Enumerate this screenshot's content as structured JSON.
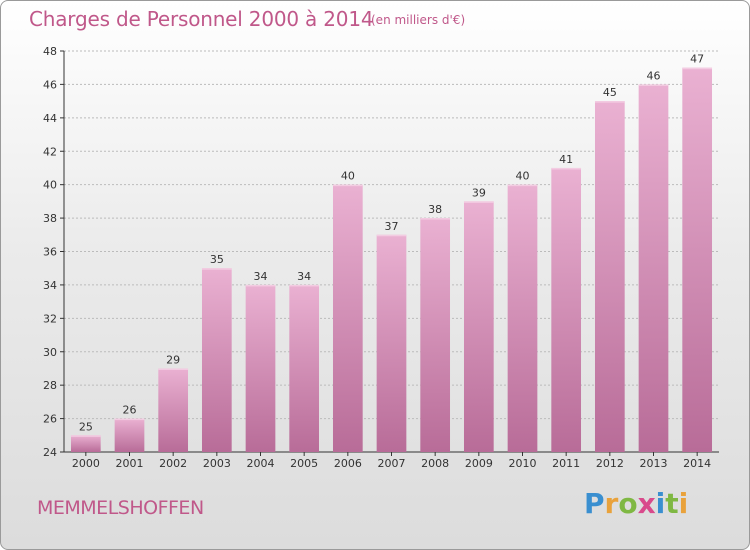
{
  "header": {
    "title": "Charges de Personnel 2000 à 2014",
    "subtitle": "(en milliers d'€)"
  },
  "footer": {
    "commune": "MEMMELSHOFFEN",
    "logo_text": "Proxiti"
  },
  "colors": {
    "bar": "#d98ab5",
    "bar_light": "#eab1d2",
    "bar_dark": "#b86c98",
    "title": "#c0588a",
    "axis": "#333333",
    "grid": "#bbbbbb"
  },
  "chart_data": {
    "type": "bar",
    "categories": [
      "2000",
      "2001",
      "2002",
      "2003",
      "2004",
      "2005",
      "2006",
      "2007",
      "2008",
      "2009",
      "2010",
      "2011",
      "2012",
      "2013",
      "2014"
    ],
    "values": [
      25,
      26,
      29,
      35,
      34,
      34,
      40,
      37,
      38,
      39,
      40,
      41,
      45,
      46,
      47
    ],
    "title": "Charges de Personnel 2000 à 2014",
    "subtitle": "(en milliers d'€)",
    "ylim": [
      24,
      48
    ],
    "yticks": [
      24,
      26,
      28,
      30,
      32,
      34,
      36,
      38,
      40,
      42,
      44,
      46,
      48
    ],
    "grid": true,
    "data_labels": true
  }
}
